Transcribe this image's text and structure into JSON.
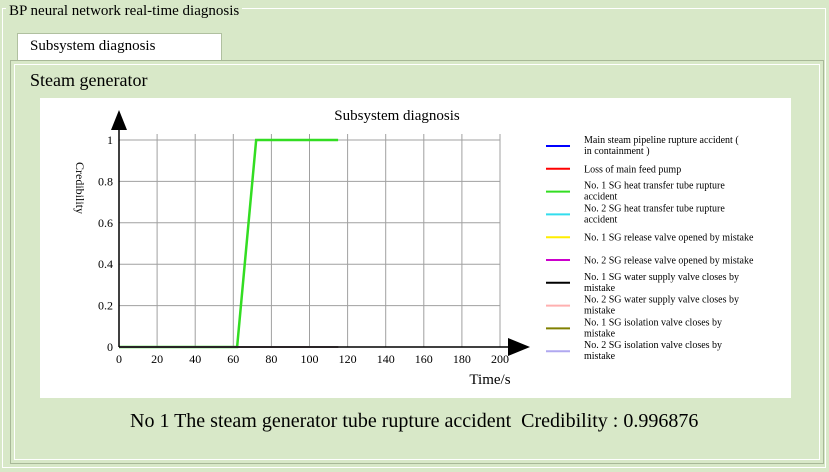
{
  "window_title": "BP neural network real-time diagnosis",
  "tab": {
    "label": "Subsystem diagnosis"
  },
  "section_title": "Steam generator",
  "status_text": "No 1 The steam generator tube rupture accident  Credibility : 0.996876",
  "chart_data": {
    "type": "line",
    "title": "Subsystem diagnosis",
    "xlabel": "Time/s",
    "ylabel": "Credibility",
    "xlim": [
      0,
      200
    ],
    "ylim": [
      0,
      1
    ],
    "xticks": [
      0,
      20,
      40,
      60,
      80,
      100,
      120,
      140,
      160,
      180,
      200
    ],
    "yticks": [
      0,
      0.2,
      0.4,
      0.6,
      0.8,
      1
    ],
    "ytick_labels": [
      "0",
      "0.2",
      "0.4",
      "0.6",
      "0.8",
      "1"
    ],
    "grid": true,
    "legend_position": "right",
    "series": [
      {
        "name": "Main steam pipeline rupture accident ( in containment )",
        "color": "#0000ff",
        "x": [
          0,
          115
        ],
        "y": [
          0,
          0
        ]
      },
      {
        "name": "Loss of main feed pump",
        "color": "#ff0000",
        "x": [
          0,
          115
        ],
        "y": [
          0,
          0
        ]
      },
      {
        "name": "No. 1 SG heat transfer tube rupture accident",
        "color": "#33dd22",
        "x": [
          0,
          62,
          72,
          115
        ],
        "y": [
          0,
          0,
          1,
          1
        ]
      },
      {
        "name": "No. 2 SG heat transfer tube rupture accident",
        "color": "#33ddee",
        "x": [
          0,
          115
        ],
        "y": [
          0,
          0
        ]
      },
      {
        "name": "No. 1 SG release valve opened by mistake",
        "color": "#ffee00",
        "x": [
          0,
          115
        ],
        "y": [
          0,
          0
        ]
      },
      {
        "name": "No. 2 SG release valve opened by mistake",
        "color": "#cc00cc",
        "x": [
          0,
          115
        ],
        "y": [
          0,
          0
        ]
      },
      {
        "name": "No. 1 SG water supply valve closes by mistake",
        "color": "#000000",
        "x": [
          0,
          115
        ],
        "y": [
          0,
          0
        ]
      },
      {
        "name": "No. 2 SG water supply valve closes by mistake",
        "color": "#ffb0b0",
        "x": [
          0,
          115
        ],
        "y": [
          0,
          0
        ]
      },
      {
        "name": "No. 1 SG isolation valve closes by mistake",
        "color": "#808000",
        "x": [
          0,
          115
        ],
        "y": [
          0,
          0
        ]
      },
      {
        "name": "No. 2 SG isolation valve closes by mistake",
        "color": "#b0a8f0",
        "x": [
          0,
          115
        ],
        "y": [
          0,
          0
        ]
      }
    ]
  }
}
